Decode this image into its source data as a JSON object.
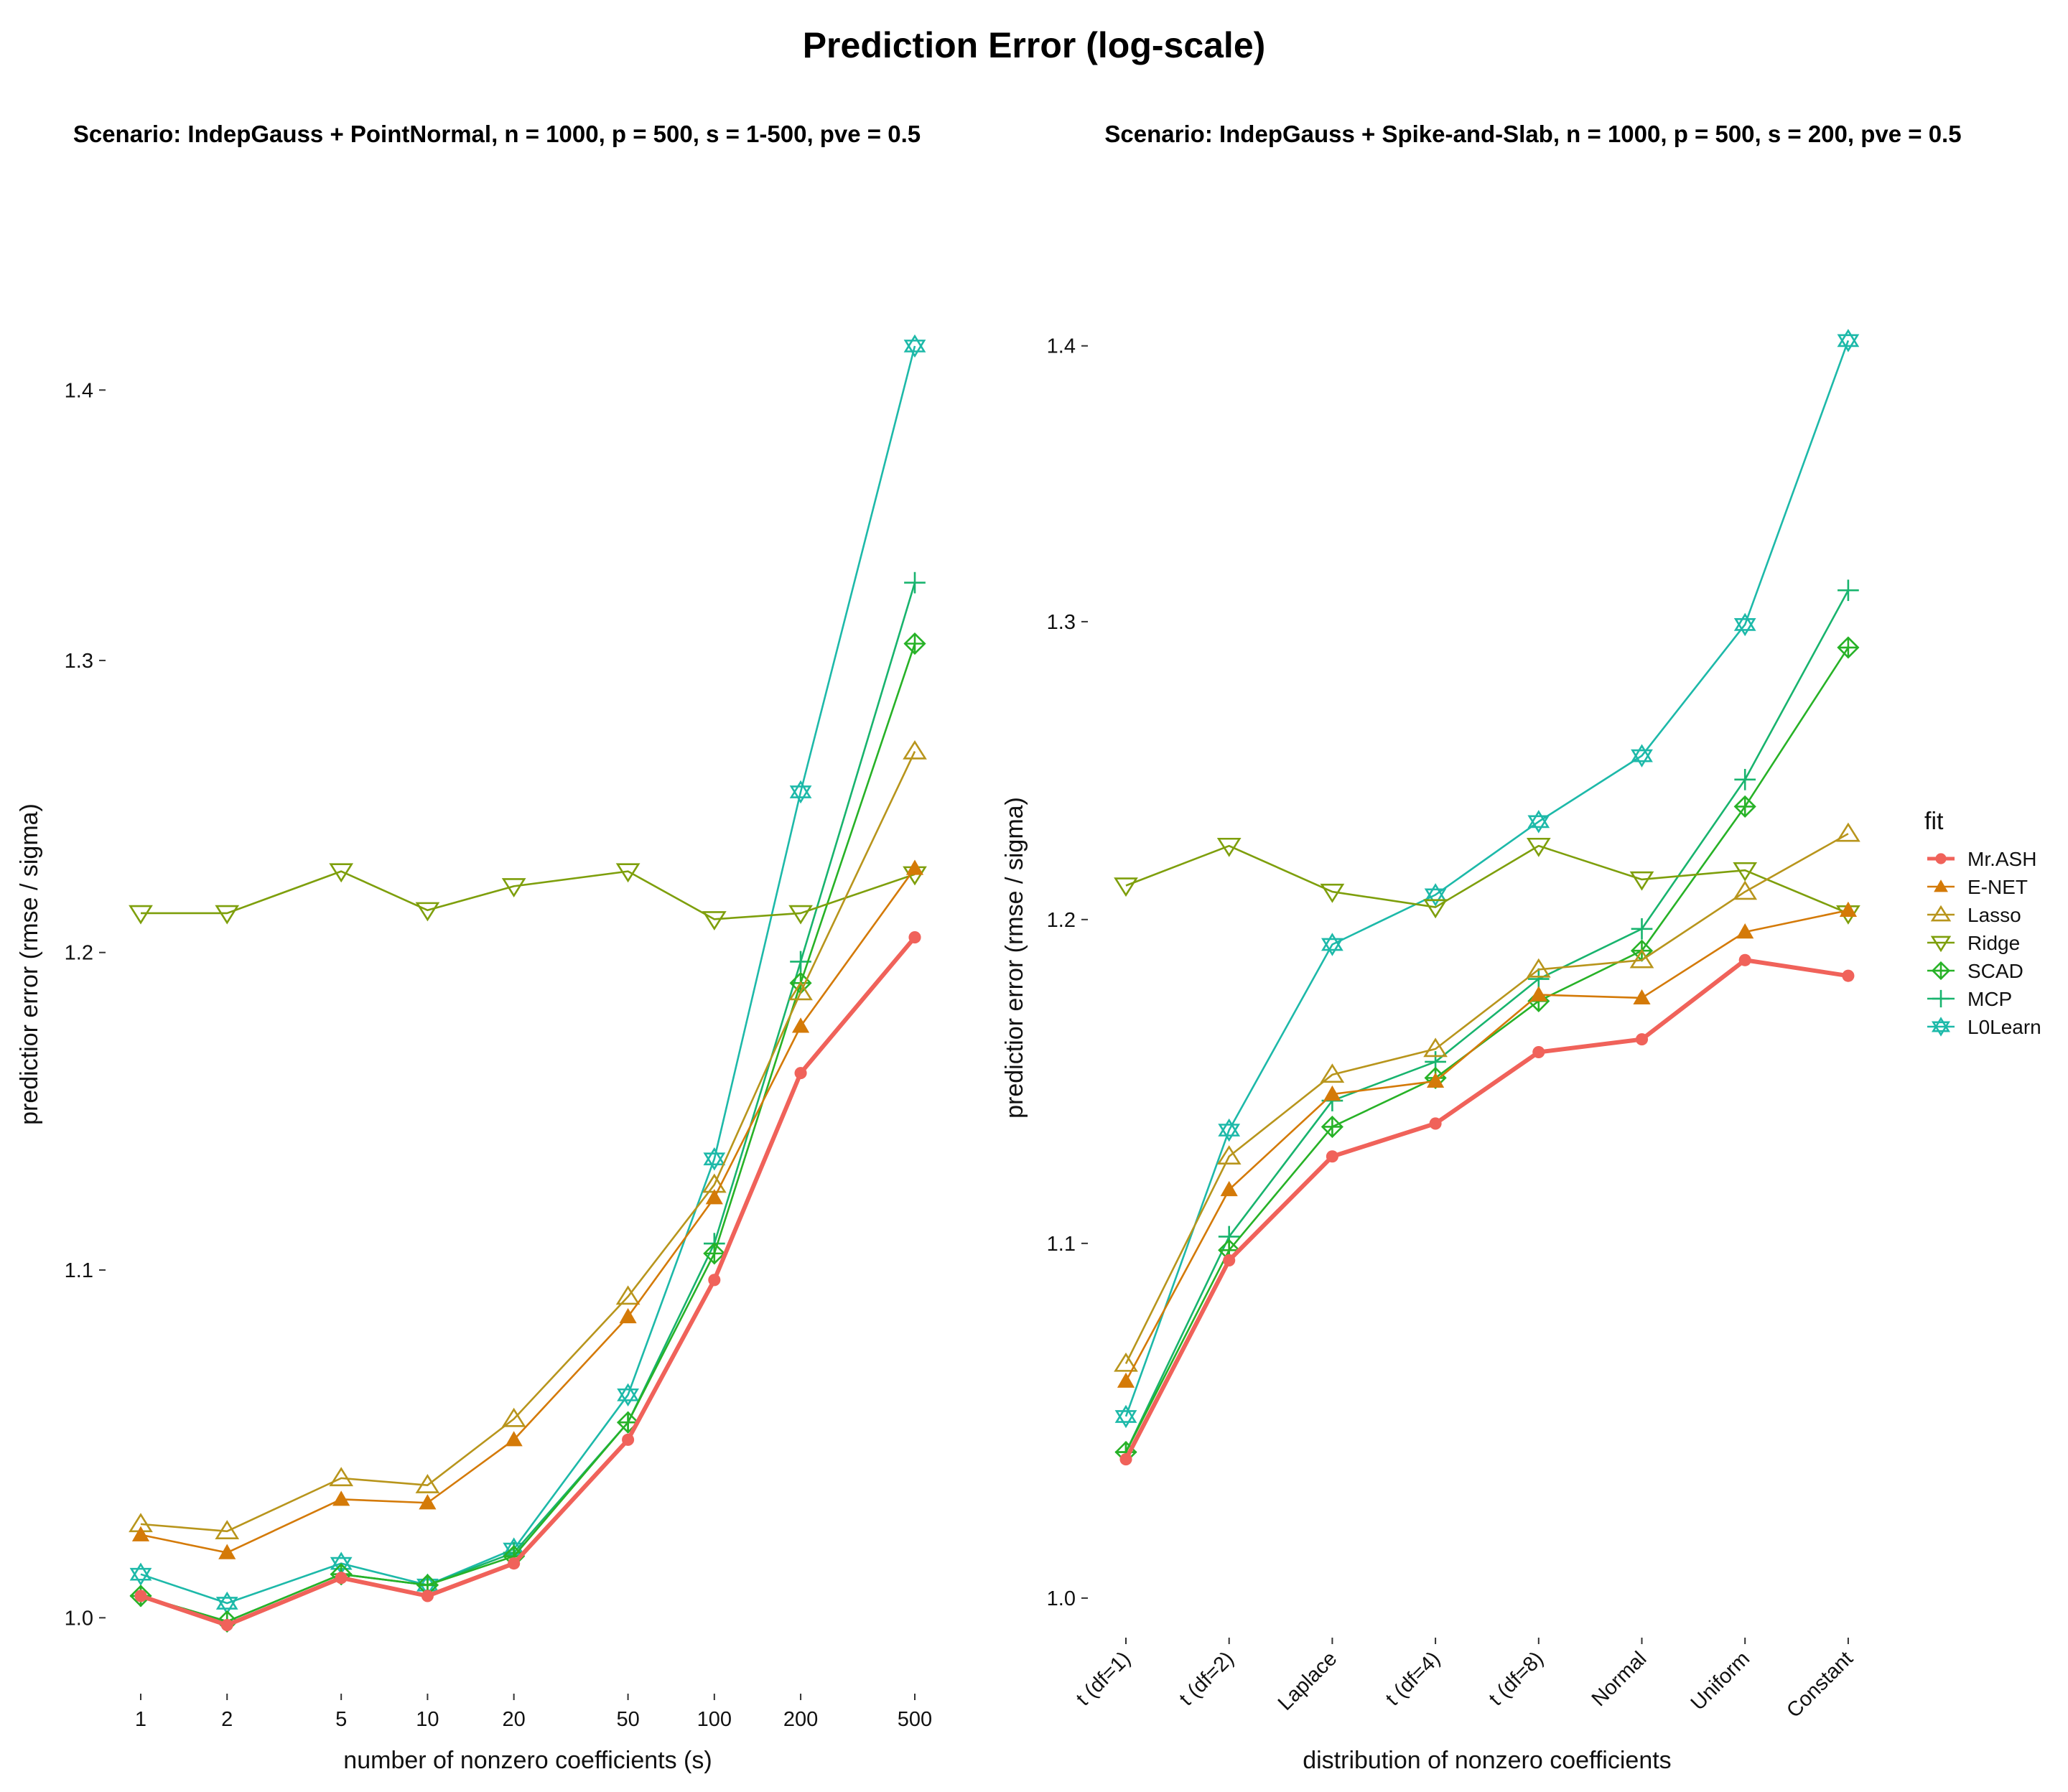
{
  "title": "Prediction Error (log-scale)",
  "colors": {
    "Mr.ASH": "#F0625A",
    "E-NET": "#D47A08",
    "Lasso": "#B8951C",
    "Ridge": "#7E9F0C",
    "SCAD": "#27B227",
    "MCP": "#18B46E",
    "L0Learn": "#1DB9A9"
  },
  "legend": {
    "title": "fit",
    "position": "right",
    "items": [
      {
        "label": "Mr.ASH",
        "shape": "filled-circle"
      },
      {
        "label": "E-NET",
        "shape": "filled-triangle"
      },
      {
        "label": "Lasso",
        "shape": "open-triangle-up"
      },
      {
        "label": "Ridge",
        "shape": "open-triangle-down"
      },
      {
        "label": "SCAD",
        "shape": "diamond-plus"
      },
      {
        "label": "MCP",
        "shape": "plus"
      },
      {
        "label": "L0Learn",
        "shape": "star-of-david"
      }
    ]
  },
  "chart_data": [
    {
      "type": "line",
      "title": "Scenario: IndepGauss + PointNormal, n = 1000, p = 500, s = 1-500, pve = 0.5",
      "xlabel": "number of nonzero coefficients (s)",
      "ylabel": "predictior error (rmse / sigma)",
      "xscale": "log",
      "yscale": "log",
      "x": [
        1,
        2,
        5,
        10,
        20,
        50,
        100,
        200,
        500
      ],
      "x_tick_labels": [
        "1",
        "2",
        "5",
        "10",
        "20",
        "50",
        "100",
        "200",
        "500"
      ],
      "y_ticks": [
        1.0,
        1.1,
        1.2,
        1.3,
        1.4
      ],
      "y_tick_labels": [
        "1.0",
        "1.1",
        "1.2",
        "1.3",
        "1.4"
      ],
      "ylim": [
        0.98,
        1.46
      ],
      "grid": false,
      "series": [
        {
          "name": "Mr.ASH",
          "values": [
            1.006,
            0.998,
            1.011,
            1.006,
            1.015,
            1.05,
            1.097,
            1.161,
            1.205
          ]
        },
        {
          "name": "E-NET",
          "values": [
            1.023,
            1.018,
            1.033,
            1.032,
            1.05,
            1.086,
            1.122,
            1.176,
            1.228
          ]
        },
        {
          "name": "Lasso",
          "values": [
            1.026,
            1.024,
            1.039,
            1.037,
            1.056,
            1.092,
            1.126,
            1.187,
            1.268
          ]
        },
        {
          "name": "Ridge",
          "values": [
            1.213,
            1.213,
            1.227,
            1.214,
            1.222,
            1.227,
            1.211,
            1.213,
            1.226
          ]
        },
        {
          "name": "SCAD",
          "values": [
            1.006,
            0.999,
            1.012,
            1.009,
            1.017,
            1.055,
            1.105,
            1.19,
            1.306
          ]
        },
        {
          "name": "MCP",
          "values": [
            1.006,
            0.999,
            1.012,
            1.009,
            1.018,
            1.055,
            1.108,
            1.197,
            1.328
          ]
        },
        {
          "name": "L0Learn",
          "values": [
            1.012,
            1.004,
            1.015,
            1.009,
            1.019,
            1.063,
            1.134,
            1.254,
            1.417
          ]
        }
      ]
    },
    {
      "type": "line",
      "title": "Scenario: IndepGauss + Spike-and-Slab, n = 1000, p = 500, s = 200, pve = 0.5",
      "xlabel": "distribution of nonzero coefficients",
      "ylabel": "predictior error (rmse / sigma)",
      "yscale": "log",
      "categories": [
        "t (df=1)",
        "t (df=2)",
        "Laplace",
        "t (df=4)",
        "t (df=8)",
        "Normal",
        "Uniform",
        "Constant"
      ],
      "y_ticks": [
        1.0,
        1.1,
        1.2,
        1.3,
        1.4
      ],
      "y_tick_labels": [
        "1.0",
        "1.1",
        "1.2",
        "1.3",
        "1.4"
      ],
      "ylim": [
        0.99,
        1.425
      ],
      "grid": false,
      "series": [
        {
          "name": "Mr.ASH",
          "values": [
            1.038,
            1.095,
            1.126,
            1.136,
            1.158,
            1.162,
            1.187,
            1.182
          ]
        },
        {
          "name": "E-NET",
          "values": [
            1.06,
            1.116,
            1.145,
            1.149,
            1.176,
            1.175,
            1.196,
            1.203
          ]
        },
        {
          "name": "Lasso",
          "values": [
            1.065,
            1.126,
            1.151,
            1.159,
            1.184,
            1.187,
            1.209,
            1.228
          ]
        },
        {
          "name": "Ridge",
          "values": [
            1.211,
            1.224,
            1.209,
            1.204,
            1.224,
            1.213,
            1.216,
            1.202
          ]
        },
        {
          "name": "SCAD",
          "values": [
            1.04,
            1.098,
            1.135,
            1.15,
            1.174,
            1.19,
            1.237,
            1.291
          ]
        },
        {
          "name": "MCP",
          "values": [
            1.04,
            1.102,
            1.143,
            1.155,
            1.181,
            1.197,
            1.246,
            1.311
          ]
        },
        {
          "name": "L0Learn",
          "values": [
            1.05,
            1.134,
            1.192,
            1.208,
            1.232,
            1.254,
            1.299,
            1.402
          ]
        }
      ]
    }
  ]
}
